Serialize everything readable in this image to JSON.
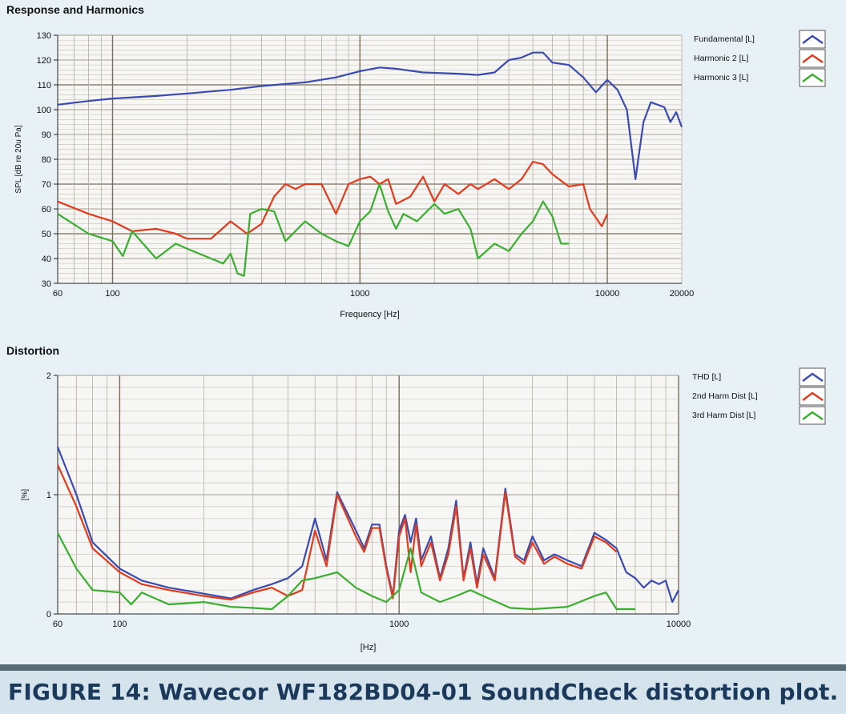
{
  "caption": "FIGURE 14: Wavecor WF182BD04-01 SoundCheck distortion plot.",
  "chart_data": [
    {
      "type": "line",
      "title": "Response and Harmonics",
      "xlabel": "Frequency [Hz]",
      "ylabel": "SPL [dB re 20u Pa]",
      "xscale": "log",
      "xlim": [
        60,
        20000
      ],
      "ylim": [
        30,
        130
      ],
      "xticks": [
        60,
        100,
        1000,
        10000,
        20000
      ],
      "yticks": [
        30,
        40,
        50,
        60,
        70,
        80,
        90,
        100,
        110,
        120,
        130
      ],
      "grid": true,
      "legend_position": "right",
      "series": [
        {
          "name": "Fundamental [L]",
          "color": "#3a4bb0",
          "points": [
            [
              60,
              102
            ],
            [
              80,
              103.5
            ],
            [
              100,
              104.5
            ],
            [
              150,
              105.5
            ],
            [
              200,
              106.5
            ],
            [
              300,
              108
            ],
            [
              400,
              109.5
            ],
            [
              600,
              111
            ],
            [
              800,
              113
            ],
            [
              1000,
              115.5
            ],
            [
              1200,
              117
            ],
            [
              1400,
              116.5
            ],
            [
              1800,
              115
            ],
            [
              2500,
              114.5
            ],
            [
              3000,
              114
            ],
            [
              3500,
              115
            ],
            [
              4000,
              120
            ],
            [
              4500,
              121
            ],
            [
              5000,
              123
            ],
            [
              5500,
              123
            ],
            [
              6000,
              119
            ],
            [
              7000,
              118
            ],
            [
              8000,
              113
            ],
            [
              9000,
              107
            ],
            [
              10000,
              112
            ],
            [
              11000,
              108
            ],
            [
              12000,
              100
            ],
            [
              13000,
              72
            ],
            [
              14000,
              95
            ],
            [
              15000,
              103
            ],
            [
              17000,
              101
            ],
            [
              18000,
              95
            ],
            [
              19000,
              99
            ],
            [
              20000,
              93
            ]
          ]
        },
        {
          "name": "Harmonic 2 [L]",
          "color": "#e23a1c",
          "points": [
            [
              60,
              63
            ],
            [
              80,
              58
            ],
            [
              100,
              55
            ],
            [
              120,
              51
            ],
            [
              150,
              52
            ],
            [
              180,
              50
            ],
            [
              200,
              48
            ],
            [
              250,
              48
            ],
            [
              300,
              55
            ],
            [
              350,
              50
            ],
            [
              400,
              54
            ],
            [
              450,
              65
            ],
            [
              500,
              70
            ],
            [
              550,
              68
            ],
            [
              600,
              70
            ],
            [
              700,
              70
            ],
            [
              800,
              58
            ],
            [
              900,
              70
            ],
            [
              1000,
              72
            ],
            [
              1100,
              73
            ],
            [
              1200,
              70
            ],
            [
              1300,
              72
            ],
            [
              1400,
              62
            ],
            [
              1600,
              65
            ],
            [
              1800,
              73
            ],
            [
              2000,
              63
            ],
            [
              2200,
              70
            ],
            [
              2500,
              66
            ],
            [
              2800,
              70
            ],
            [
              3000,
              68
            ],
            [
              3500,
              72
            ],
            [
              4000,
              68
            ],
            [
              4500,
              72
            ],
            [
              5000,
              79
            ],
            [
              5500,
              78
            ],
            [
              6000,
              74
            ],
            [
              7000,
              69
            ],
            [
              8000,
              70
            ],
            [
              8500,
              60
            ],
            [
              9500,
              53
            ],
            [
              10000,
              58
            ]
          ]
        },
        {
          "name": "Harmonic 3 [L]",
          "color": "#3aae2e",
          "points": [
            [
              60,
              58
            ],
            [
              80,
              50
            ],
            [
              100,
              47
            ],
            [
              110,
              41
            ],
            [
              120,
              51
            ],
            [
              150,
              40
            ],
            [
              180,
              46
            ],
            [
              200,
              44
            ],
            [
              250,
              40
            ],
            [
              280,
              38
            ],
            [
              300,
              42
            ],
            [
              320,
              34
            ],
            [
              340,
              33
            ],
            [
              360,
              58
            ],
            [
              400,
              60
            ],
            [
              450,
              59
            ],
            [
              500,
              47
            ],
            [
              600,
              55
            ],
            [
              700,
              50
            ],
            [
              800,
              47
            ],
            [
              900,
              45
            ],
            [
              1000,
              55
            ],
            [
              1100,
              59
            ],
            [
              1200,
              70
            ],
            [
              1300,
              59
            ],
            [
              1400,
              52
            ],
            [
              1500,
              58
            ],
            [
              1700,
              55
            ],
            [
              2000,
              62
            ],
            [
              2200,
              58
            ],
            [
              2500,
              60
            ],
            [
              2800,
              52
            ],
            [
              3000,
              40
            ],
            [
              3500,
              46
            ],
            [
              4000,
              43
            ],
            [
              4500,
              50
            ],
            [
              5000,
              55
            ],
            [
              5500,
              63
            ],
            [
              6000,
              57
            ],
            [
              6500,
              46
            ],
            [
              7000,
              46
            ]
          ]
        }
      ]
    },
    {
      "type": "line",
      "title": "Distortion",
      "xlabel": "[Hz]",
      "ylabel": "[%]",
      "xscale": "log",
      "xlim": [
        60,
        10000
      ],
      "ylim": [
        0,
        2
      ],
      "xticks": [
        60,
        100,
        1000,
        10000
      ],
      "yticks": [
        0,
        1,
        2
      ],
      "grid": true,
      "legend_position": "right",
      "series": [
        {
          "name": "THD [L]",
          "color": "#3a4bb0",
          "points": [
            [
              60,
              1.4
            ],
            [
              70,
              1.0
            ],
            [
              80,
              0.6
            ],
            [
              100,
              0.38
            ],
            [
              120,
              0.28
            ],
            [
              150,
              0.22
            ],
            [
              200,
              0.17
            ],
            [
              250,
              0.13
            ],
            [
              300,
              0.2
            ],
            [
              350,
              0.25
            ],
            [
              400,
              0.3
            ],
            [
              450,
              0.4
            ],
            [
              500,
              0.8
            ],
            [
              550,
              0.45
            ],
            [
              600,
              1.02
            ],
            [
              700,
              0.7
            ],
            [
              750,
              0.55
            ],
            [
              800,
              0.75
            ],
            [
              850,
              0.75
            ],
            [
              900,
              0.4
            ],
            [
              950,
              0.15
            ],
            [
              1000,
              0.7
            ],
            [
              1050,
              0.83
            ],
            [
              1100,
              0.6
            ],
            [
              1150,
              0.8
            ],
            [
              1200,
              0.45
            ],
            [
              1300,
              0.65
            ],
            [
              1400,
              0.3
            ],
            [
              1500,
              0.55
            ],
            [
              1600,
              0.95
            ],
            [
              1700,
              0.3
            ],
            [
              1800,
              0.6
            ],
            [
              1900,
              0.25
            ],
            [
              2000,
              0.55
            ],
            [
              2200,
              0.3
            ],
            [
              2400,
              1.05
            ],
            [
              2600,
              0.5
            ],
            [
              2800,
              0.45
            ],
            [
              3000,
              0.65
            ],
            [
              3300,
              0.45
            ],
            [
              3600,
              0.5
            ],
            [
              4000,
              0.45
            ],
            [
              4500,
              0.4
            ],
            [
              5000,
              0.68
            ],
            [
              5500,
              0.62
            ],
            [
              6000,
              0.55
            ],
            [
              6500,
              0.35
            ],
            [
              7000,
              0.3
            ],
            [
              7500,
              0.22
            ],
            [
              8000,
              0.28
            ],
            [
              8500,
              0.25
            ],
            [
              9000,
              0.28
            ],
            [
              9500,
              0.1
            ],
            [
              10000,
              0.2
            ]
          ]
        },
        {
          "name": "2nd Harm Dist [L]",
          "color": "#e23a1c",
          "points": [
            [
              60,
              1.25
            ],
            [
              70,
              0.9
            ],
            [
              80,
              0.55
            ],
            [
              100,
              0.35
            ],
            [
              120,
              0.25
            ],
            [
              150,
              0.2
            ],
            [
              200,
              0.15
            ],
            [
              250,
              0.12
            ],
            [
              300,
              0.18
            ],
            [
              350,
              0.22
            ],
            [
              400,
              0.15
            ],
            [
              450,
              0.2
            ],
            [
              500,
              0.7
            ],
            [
              550,
              0.4
            ],
            [
              600,
              1.0
            ],
            [
              700,
              0.65
            ],
            [
              750,
              0.52
            ],
            [
              800,
              0.72
            ],
            [
              850,
              0.72
            ],
            [
              900,
              0.38
            ],
            [
              950,
              0.13
            ],
            [
              1000,
              0.65
            ],
            [
              1050,
              0.8
            ],
            [
              1100,
              0.35
            ],
            [
              1150,
              0.75
            ],
            [
              1200,
              0.4
            ],
            [
              1300,
              0.6
            ],
            [
              1400,
              0.28
            ],
            [
              1500,
              0.5
            ],
            [
              1600,
              0.9
            ],
            [
              1700,
              0.28
            ],
            [
              1800,
              0.55
            ],
            [
              1900,
              0.22
            ],
            [
              2000,
              0.5
            ],
            [
              2200,
              0.28
            ],
            [
              2400,
              1.02
            ],
            [
              2600,
              0.48
            ],
            [
              2800,
              0.42
            ],
            [
              3000,
              0.6
            ],
            [
              3300,
              0.42
            ],
            [
              3600,
              0.48
            ],
            [
              4000,
              0.42
            ],
            [
              4500,
              0.38
            ],
            [
              5000,
              0.65
            ],
            [
              5500,
              0.6
            ],
            [
              6000,
              0.52
            ]
          ]
        },
        {
          "name": "3rd Harm Dist [L]",
          "color": "#3aae2e",
          "points": [
            [
              60,
              0.68
            ],
            [
              70,
              0.38
            ],
            [
              80,
              0.2
            ],
            [
              100,
              0.18
            ],
            [
              110,
              0.08
            ],
            [
              120,
              0.18
            ],
            [
              150,
              0.08
            ],
            [
              200,
              0.1
            ],
            [
              250,
              0.06
            ],
            [
              300,
              0.05
            ],
            [
              350,
              0.04
            ],
            [
              400,
              0.15
            ],
            [
              450,
              0.28
            ],
            [
              500,
              0.3
            ],
            [
              600,
              0.35
            ],
            [
              700,
              0.22
            ],
            [
              800,
              0.15
            ],
            [
              900,
              0.1
            ],
            [
              1000,
              0.2
            ],
            [
              1100,
              0.55
            ],
            [
              1200,
              0.18
            ],
            [
              1400,
              0.1
            ],
            [
              1600,
              0.15
            ],
            [
              1800,
              0.2
            ],
            [
              2000,
              0.15
            ],
            [
              2500,
              0.05
            ],
            [
              3000,
              0.04
            ],
            [
              4000,
              0.06
            ],
            [
              5000,
              0.15
            ],
            [
              5500,
              0.18
            ],
            [
              6000,
              0.04
            ],
            [
              7000,
              0.04
            ]
          ]
        }
      ]
    }
  ]
}
